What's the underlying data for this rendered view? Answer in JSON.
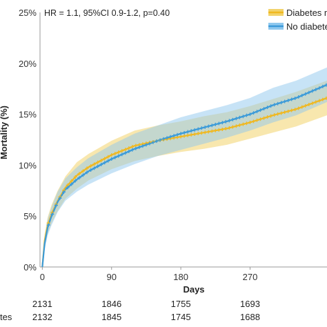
{
  "chart_data": {
    "type": "line",
    "annotation": "HR = 1.1, 95%CI 0.9-1.2, p=0.40",
    "xlabel": "Days",
    "ylabel": "Mortality (%)",
    "xlim": [
      -3,
      370
    ],
    "ylim": [
      0,
      25
    ],
    "x_ticks": [
      0,
      90,
      180,
      270
    ],
    "x_tick_labels": [
      "0",
      "90",
      "180",
      "270"
    ],
    "y_ticks": [
      0,
      5,
      10,
      15,
      20,
      25
    ],
    "y_tick_labels": [
      "0%",
      "5%",
      "10%",
      "15%",
      "20%",
      "25%"
    ],
    "legend_position": "top-right",
    "series": [
      {
        "name": "Diabetes m",
        "color": "#F0B820",
        "band_color": "#F2D36B",
        "x": [
          0,
          3,
          7,
          12,
          20,
          30,
          45,
          60,
          90,
          120,
          150,
          180,
          210,
          240,
          270,
          300,
          330,
          370
        ],
        "values": [
          0,
          2.6,
          4.1,
          5.2,
          6.5,
          7.8,
          9.0,
          9.8,
          11.0,
          11.9,
          12.4,
          12.8,
          13.2,
          13.6,
          14.2,
          14.9,
          15.5,
          16.6
        ],
        "lower": [
          0,
          2.0,
          3.3,
          4.3,
          5.5,
          6.7,
          7.7,
          8.5,
          9.6,
          10.4,
          10.9,
          11.3,
          11.6,
          12.0,
          12.6,
          13.2,
          13.8,
          14.9
        ],
        "upper": [
          0,
          3.2,
          4.9,
          6.1,
          7.5,
          8.9,
          10.3,
          11.1,
          12.4,
          13.4,
          13.9,
          14.3,
          14.8,
          15.2,
          15.8,
          16.5,
          17.2,
          18.3
        ]
      },
      {
        "name": "No diabete",
        "color": "#3A9AD9",
        "band_color": "#8FC8EE",
        "x": [
          0,
          3,
          7,
          12,
          20,
          30,
          45,
          60,
          90,
          120,
          150,
          180,
          210,
          240,
          270,
          300,
          330,
          370
        ],
        "values": [
          0,
          2.3,
          3.9,
          5.0,
          6.4,
          7.6,
          8.6,
          9.4,
          10.6,
          11.6,
          12.4,
          13.1,
          13.7,
          14.3,
          15.0,
          15.9,
          16.6,
          17.9
        ],
        "lower": [
          0,
          1.7,
          3.1,
          4.1,
          5.4,
          6.5,
          7.4,
          8.1,
          9.2,
          10.1,
          10.9,
          11.5,
          12.1,
          12.7,
          13.4,
          14.2,
          14.9,
          16.2
        ],
        "upper": [
          0,
          2.9,
          4.7,
          5.9,
          7.4,
          8.7,
          9.8,
          10.7,
          12.0,
          13.1,
          13.9,
          14.7,
          15.3,
          15.9,
          16.6,
          17.6,
          18.3,
          19.6
        ]
      }
    ],
    "risk_table": {
      "rows": [
        {
          "label": "",
          "values": [
            "2131",
            "1846",
            "1755",
            "1693"
          ]
        },
        {
          "label": "tes",
          "values": [
            "2132",
            "1845",
            "1745",
            "1688"
          ]
        }
      ]
    }
  }
}
